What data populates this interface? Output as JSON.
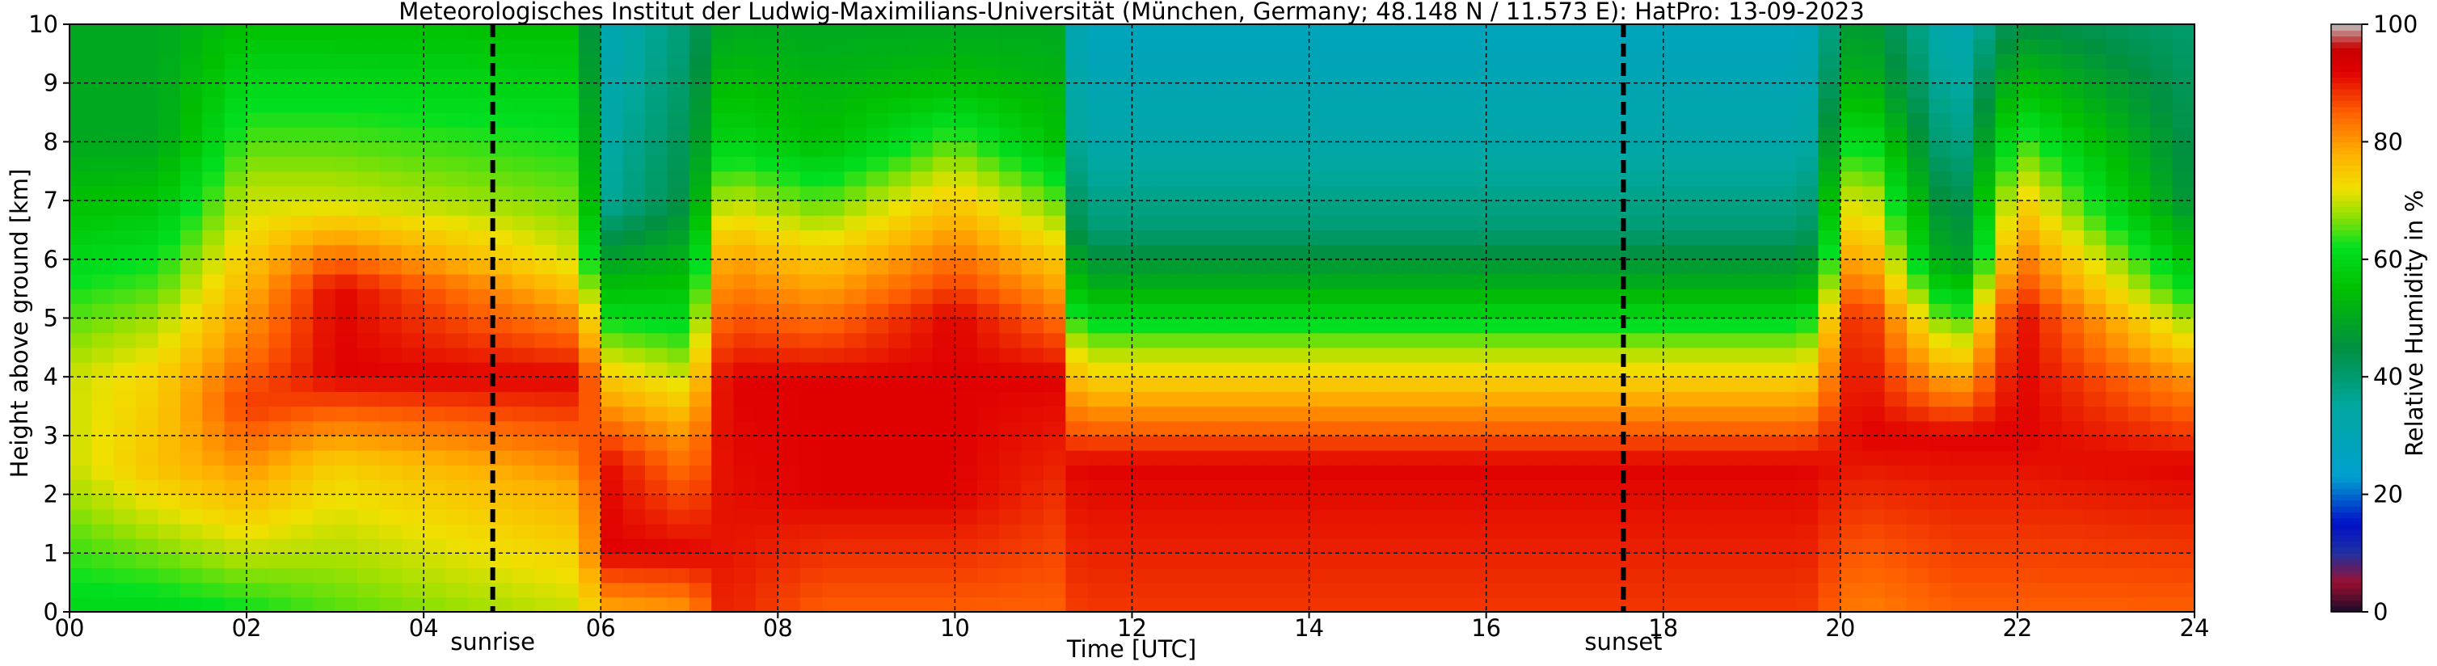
{
  "chart_data": {
    "type": "heatmap",
    "title": "Meteorologisches Institut der Ludwig-Maximilians-Universität (München, Germany; 48.148 N / 11.573 E):    HatPro: 13-09-2023",
    "xlabel": "Time [UTC]",
    "ylabel": "Height above ground [km]",
    "x_ticks": [
      "00",
      "02",
      "04",
      "06",
      "08",
      "10",
      "12",
      "14",
      "16",
      "18",
      "20",
      "22",
      "24"
    ],
    "y_ticks": [
      "0",
      "1",
      "2",
      "3",
      "4",
      "5",
      "6",
      "7",
      "8",
      "9",
      "10"
    ],
    "xlim": [
      0,
      24
    ],
    "ylim": [
      0,
      10
    ],
    "grid": true,
    "markers": [
      {
        "label": "sunrise",
        "time_utc": 4.78
      },
      {
        "label": "sunset",
        "time_utc": 17.55
      }
    ],
    "colorbar": {
      "label": "Relative Humidity in %",
      "ticks": [
        "0",
        "20",
        "40",
        "60",
        "80",
        "100"
      ],
      "range": [
        0,
        100
      ],
      "stops": [
        {
          "v": 0,
          "color": "#1a0a2a"
        },
        {
          "v": 5,
          "color": "#9a1030"
        },
        {
          "v": 10,
          "color": "#2030a0"
        },
        {
          "v": 15,
          "color": "#0010c8"
        },
        {
          "v": 23,
          "color": "#00a0d0"
        },
        {
          "v": 35,
          "color": "#00a8a0"
        },
        {
          "v": 45,
          "color": "#009040"
        },
        {
          "v": 55,
          "color": "#00c000"
        },
        {
          "v": 62,
          "color": "#00e020"
        },
        {
          "v": 68,
          "color": "#a0e000"
        },
        {
          "v": 72,
          "color": "#f0e000"
        },
        {
          "v": 78,
          "color": "#ffb000"
        },
        {
          "v": 85,
          "color": "#ff6000"
        },
        {
          "v": 92,
          "color": "#e00000"
        },
        {
          "v": 96,
          "color": "#c80000"
        },
        {
          "v": 100,
          "color": "#c0c0c0"
        }
      ]
    },
    "rh_profiles": [
      {
        "t": 0.0,
        "levels": [
          {
            "z": 0,
            "rh": 60
          },
          {
            "z": 2.5,
            "rh": 70
          },
          {
            "z": 4,
            "rh": 70
          },
          {
            "z": 6,
            "rh": 60
          },
          {
            "z": 8,
            "rh": 50
          },
          {
            "z": 10,
            "rh": 50
          }
        ]
      },
      {
        "t": 1.0,
        "levels": [
          {
            "z": 0,
            "rh": 60
          },
          {
            "z": 2.5,
            "rh": 76
          },
          {
            "z": 4,
            "rh": 74
          },
          {
            "z": 6,
            "rh": 62
          },
          {
            "z": 8,
            "rh": 50
          },
          {
            "z": 10,
            "rh": 50
          }
        ]
      },
      {
        "t": 2.0,
        "levels": [
          {
            "z": 0,
            "rh": 62
          },
          {
            "z": 3.5,
            "rh": 88
          },
          {
            "z": 5,
            "rh": 80
          },
          {
            "z": 7,
            "rh": 70
          },
          {
            "z": 10,
            "rh": 55
          }
        ]
      },
      {
        "t": 3.0,
        "levels": [
          {
            "z": 0,
            "rh": 65
          },
          {
            "z": 2.5,
            "rh": 74
          },
          {
            "z": 4,
            "rh": 92
          },
          {
            "z": 5.5,
            "rh": 92
          },
          {
            "z": 7,
            "rh": 70
          },
          {
            "z": 10,
            "rh": 55
          }
        ]
      },
      {
        "t": 5.8,
        "levels": [
          {
            "z": 0,
            "rh": 70
          },
          {
            "z": 2,
            "rh": 78
          },
          {
            "z": 4,
            "rh": 92
          },
          {
            "z": 6,
            "rh": 70
          },
          {
            "z": 10,
            "rh": 55
          }
        ]
      },
      {
        "t": 6.0,
        "levels": [
          {
            "z": 0,
            "rh": 78
          },
          {
            "z": 1,
            "rh": 92
          },
          {
            "z": 2.5,
            "rh": 92
          },
          {
            "z": 4,
            "rh": 75
          },
          {
            "z": 5.5,
            "rh": 55
          },
          {
            "z": 7,
            "rh": 35
          },
          {
            "z": 10,
            "rh": 30
          }
        ]
      },
      {
        "t": 7.0,
        "levels": [
          {
            "z": 0,
            "rh": 80
          },
          {
            "z": 1,
            "rh": 92
          },
          {
            "z": 3,
            "rh": 80
          },
          {
            "z": 5,
            "rh": 60
          },
          {
            "z": 7,
            "rh": 45
          },
          {
            "z": 10,
            "rh": 40
          }
        ]
      },
      {
        "t": 7.4,
        "levels": [
          {
            "z": 0,
            "rh": 90
          },
          {
            "z": 4,
            "rh": 92
          },
          {
            "z": 6,
            "rh": 80
          },
          {
            "z": 8,
            "rh": 60
          },
          {
            "z": 10,
            "rh": 50
          }
        ]
      },
      {
        "t": 8.5,
        "levels": [
          {
            "z": 0,
            "rh": 85
          },
          {
            "z": 2,
            "rh": 92
          },
          {
            "z": 4,
            "rh": 92
          },
          {
            "z": 6,
            "rh": 75
          },
          {
            "z": 8,
            "rh": 55
          },
          {
            "z": 10,
            "rh": 50
          }
        ]
      },
      {
        "t": 10.0,
        "levels": [
          {
            "z": 0,
            "rh": 85
          },
          {
            "z": 2,
            "rh": 92
          },
          {
            "z": 5,
            "rh": 92
          },
          {
            "z": 7,
            "rh": 75
          },
          {
            "z": 9,
            "rh": 55
          },
          {
            "z": 10,
            "rh": 50
          }
        ]
      },
      {
        "t": 11.2,
        "levels": [
          {
            "z": 0,
            "rh": 85
          },
          {
            "z": 4,
            "rh": 92
          },
          {
            "z": 6,
            "rh": 75
          },
          {
            "z": 8,
            "rh": 55
          },
          {
            "z": 10,
            "rh": 50
          }
        ]
      },
      {
        "t": 11.4,
        "levels": [
          {
            "z": 0,
            "rh": 88
          },
          {
            "z": 2.5,
            "rh": 92
          },
          {
            "z": 3.5,
            "rh": 80
          },
          {
            "z": 4.5,
            "rh": 68
          },
          {
            "z": 5.5,
            "rh": 52
          },
          {
            "z": 6.5,
            "rh": 40
          },
          {
            "z": 8,
            "rh": 33
          },
          {
            "z": 10,
            "rh": 28
          }
        ]
      },
      {
        "t": 19.6,
        "levels": [
          {
            "z": 0,
            "rh": 88
          },
          {
            "z": 2.5,
            "rh": 92
          },
          {
            "z": 3.5,
            "rh": 80
          },
          {
            "z": 4.5,
            "rh": 68
          },
          {
            "z": 5.5,
            "rh": 52
          },
          {
            "z": 6.5,
            "rh": 40
          },
          {
            "z": 8,
            "rh": 33
          },
          {
            "z": 10,
            "rh": 28
          }
        ]
      },
      {
        "t": 20.2,
        "levels": [
          {
            "z": 0,
            "rh": 82
          },
          {
            "z": 3,
            "rh": 92
          },
          {
            "z": 5,
            "rh": 92
          },
          {
            "z": 7,
            "rh": 75
          },
          {
            "z": 9,
            "rh": 55
          },
          {
            "z": 10,
            "rh": 50
          }
        ]
      },
      {
        "t": 21.3,
        "levels": [
          {
            "z": 0,
            "rh": 85
          },
          {
            "z": 3,
            "rh": 92
          },
          {
            "z": 4.5,
            "rh": 70
          },
          {
            "z": 6,
            "rh": 45
          },
          {
            "z": 8,
            "rh": 35
          },
          {
            "z": 10,
            "rh": 30
          }
        ]
      },
      {
        "t": 22.0,
        "levels": [
          {
            "z": 0,
            "rh": 85
          },
          {
            "z": 3,
            "rh": 92
          },
          {
            "z": 5,
            "rh": 92
          },
          {
            "z": 7,
            "rh": 75
          },
          {
            "z": 9,
            "rh": 55
          },
          {
            "z": 10,
            "rh": 45
          }
        ]
      },
      {
        "t": 24.0,
        "levels": [
          {
            "z": 0,
            "rh": 85
          },
          {
            "z": 2.5,
            "rh": 92
          },
          {
            "z": 4,
            "rh": 80
          },
          {
            "z": 5.5,
            "rh": 60
          },
          {
            "z": 7,
            "rh": 45
          },
          {
            "z": 10,
            "rh": 40
          }
        ]
      }
    ]
  }
}
